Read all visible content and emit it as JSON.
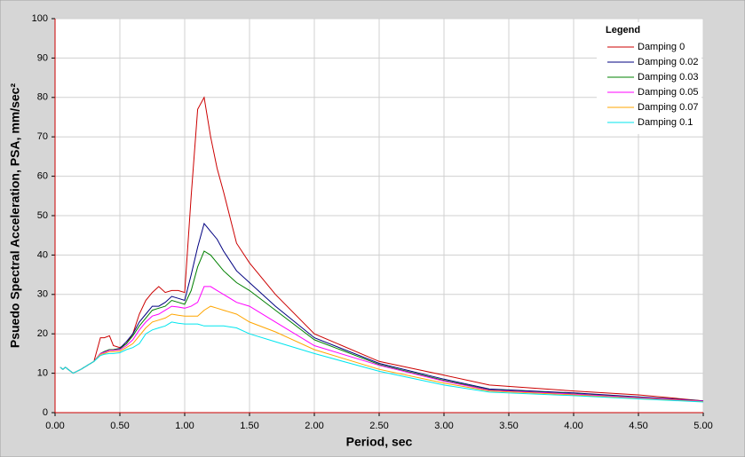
{
  "chart_data": {
    "type": "line",
    "xlabel": "Period, sec",
    "ylabel": "Psuedo Spectral Acceleration, PSA, mm/sec²",
    "legend_title": "Legend",
    "legend_position": "upper right",
    "grid": true,
    "x": [
      0.04,
      0.06,
      0.08,
      0.1,
      0.14,
      0.2,
      0.25,
      0.3,
      0.35,
      0.38,
      0.42,
      0.45,
      0.5,
      0.55,
      0.6,
      0.65,
      0.7,
      0.75,
      0.8,
      0.85,
      0.9,
      0.95,
      1.0,
      1.05,
      1.1,
      1.15,
      1.2,
      1.25,
      1.3,
      1.4,
      1.5,
      1.7,
      2.0,
      2.5,
      3.0,
      3.35,
      4.0,
      4.5,
      5.0
    ],
    "xlim": [
      0,
      5
    ],
    "xticks": [
      {
        "value": 0,
        "label": "0.00"
      },
      {
        "value": 0.5,
        "label": "0.50"
      },
      {
        "value": 1,
        "label": "1.00"
      },
      {
        "value": 1.5,
        "label": "1.50"
      },
      {
        "value": 2,
        "label": "2.00"
      },
      {
        "value": 2.5,
        "label": "2.50"
      },
      {
        "value": 3,
        "label": "3.00"
      },
      {
        "value": 3.5,
        "label": "3.50"
      },
      {
        "value": 4,
        "label": "4.00"
      },
      {
        "value": 4.5,
        "label": "4.50"
      },
      {
        "value": 5,
        "label": "5.00"
      }
    ],
    "ylim": [
      0,
      100
    ],
    "yticks": [
      0,
      10,
      20,
      30,
      40,
      50,
      60,
      70,
      80,
      90,
      100
    ],
    "series": [
      {
        "name": "Damping 0",
        "color": "#cc0000",
        "values": [
          11.5,
          11,
          11.5,
          11,
          10,
          11,
          12,
          13,
          19,
          19,
          19.5,
          17,
          16.5,
          17.5,
          20,
          25,
          28.5,
          30.5,
          32,
          30.5,
          31,
          31,
          30.5,
          55,
          77,
          80,
          70,
          62,
          56,
          43,
          38,
          30,
          20,
          13,
          9.5,
          7,
          5.5,
          4.5,
          3
        ]
      },
      {
        "name": "Damping 0.02",
        "color": "#000080",
        "values": [
          11.5,
          11,
          11.5,
          11,
          10,
          11,
          12,
          13,
          15,
          15.5,
          16,
          16,
          16.3,
          18,
          20,
          23,
          25,
          27,
          27,
          28,
          29.5,
          29,
          28.5,
          35,
          42,
          48,
          46,
          44,
          41,
          36,
          33,
          27,
          19,
          12.5,
          8.5,
          6,
          5,
          4,
          3
        ]
      },
      {
        "name": "Damping 0.03",
        "color": "#008000",
        "values": [
          11.5,
          11,
          11.5,
          11,
          10,
          11,
          12,
          13,
          15,
          15.5,
          16,
          16,
          16.2,
          17.5,
          19.5,
          22,
          24,
          26,
          26.5,
          27,
          28.5,
          28,
          27.5,
          31,
          37,
          41,
          40,
          38,
          36,
          33,
          31,
          26,
          18.5,
          12.2,
          8.2,
          5.8,
          4.8,
          3.9,
          2.9
        ]
      },
      {
        "name": "Damping 0.05",
        "color": "#ff00ff",
        "values": [
          11.5,
          11,
          11.5,
          11,
          10,
          11,
          12,
          13,
          15,
          15.3,
          15.8,
          15.8,
          16,
          17,
          18.5,
          21,
          23,
          24.5,
          25,
          26,
          27,
          26.8,
          26.5,
          27,
          28,
          32,
          32,
          31,
          30,
          28,
          27,
          23,
          17,
          12,
          8,
          5.7,
          4.7,
          3.8,
          2.9
        ]
      },
      {
        "name": "Damping 0.07",
        "color": "#ffa500",
        "values": [
          11.5,
          11,
          11.5,
          11,
          10,
          11,
          12,
          13,
          14.8,
          15,
          15.5,
          15.5,
          15.6,
          16.5,
          17.5,
          19.5,
          21.5,
          23,
          23.5,
          24,
          25,
          24.7,
          24.5,
          24.5,
          24.5,
          26,
          27,
          26.5,
          26,
          25,
          23,
          20.5,
          16,
          11,
          7.5,
          5.5,
          4.5,
          3.6,
          2.8
        ]
      },
      {
        "name": "Damping 0.1",
        "color": "#00e5ee",
        "values": [
          11.5,
          11,
          11.5,
          11,
          10,
          11,
          12,
          13,
          14.5,
          14.8,
          15,
          15,
          15.2,
          16,
          16.5,
          17.5,
          20,
          21,
          21.5,
          22,
          23,
          22.7,
          22.5,
          22.5,
          22.5,
          22,
          22,
          22,
          22,
          21.5,
          20,
          18,
          15,
          10.5,
          7,
          5.2,
          4.3,
          3.5,
          2.7
        ]
      }
    ]
  }
}
